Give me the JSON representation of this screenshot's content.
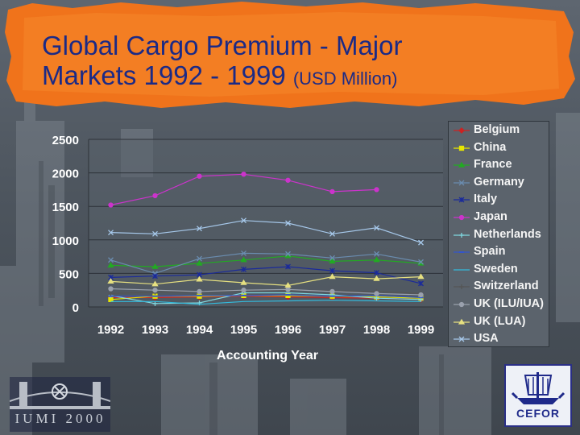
{
  "slide": {
    "title_line1": "Global Cargo Premium - Major",
    "title_line2": "Markets 1992 - 1999",
    "title_units": "(USD Million)",
    "logo_left_text": "IUMI 2000",
    "logo_right_text": "CEFOR"
  },
  "chart_data": {
    "type": "line",
    "title": "Global Cargo Premium - Major Markets 1992 - 1999 (USD Million)",
    "xlabel": "Accounting Year",
    "ylabel": "",
    "categories": [
      "1992",
      "1993",
      "1994",
      "1995",
      "1996",
      "1997",
      "1998",
      "1999"
    ],
    "ylim": [
      0,
      2500
    ],
    "yticks": [
      0,
      500,
      1000,
      1500,
      2000,
      2500
    ],
    "grid": "horizontal",
    "legend_position": "right",
    "series": [
      {
        "name": "Belgium",
        "color": "#cc2222",
        "marker": "diamond",
        "values": [
          140,
          140,
          150,
          160,
          150,
          140,
          130,
          110
        ]
      },
      {
        "name": "China",
        "color": "#e6e600",
        "marker": "square",
        "values": [
          110,
          160,
          160,
          170,
          170,
          160,
          150,
          130
        ]
      },
      {
        "name": "France",
        "color": "#22aa22",
        "marker": "triangle",
        "values": [
          620,
          600,
          650,
          700,
          760,
          680,
          700,
          650
        ]
      },
      {
        "name": "Germany",
        "color": "#6a8caf",
        "marker": "x",
        "values": [
          700,
          500,
          720,
          800,
          790,
          730,
          790,
          670
        ]
      },
      {
        "name": "Italy",
        "color": "#1a2a9a",
        "marker": "star",
        "values": [
          440,
          460,
          480,
          560,
          600,
          540,
          510,
          350
        ]
      },
      {
        "name": "Japan",
        "color": "#cc33cc",
        "marker": "circle",
        "values": [
          1520,
          1660,
          1950,
          1980,
          1890,
          1720,
          1750,
          null
        ]
      },
      {
        "name": "Netherlands",
        "color": "#7fd8e0",
        "marker": "plus",
        "values": [
          170,
          50,
          60,
          210,
          210,
          180,
          130,
          110
        ]
      },
      {
        "name": "Spain",
        "color": "#3355cc",
        "marker": "dash",
        "values": [
          160,
          160,
          170,
          170,
          180,
          160,
          170,
          140
        ]
      },
      {
        "name": "Sweden",
        "color": "#33bbdd",
        "marker": "none",
        "values": [
          80,
          80,
          40,
          80,
          90,
          100,
          90,
          80
        ]
      },
      {
        "name": "Switzerland",
        "color": "#555555",
        "marker": "plus",
        "values": [
          200,
          220,
          230,
          240,
          250,
          240,
          230,
          200
        ]
      },
      {
        "name": "UK (ILU/IUA)",
        "color": "#9aa1ad",
        "marker": "circle",
        "values": [
          270,
          250,
          230,
          250,
          260,
          230,
          200,
          180
        ]
      },
      {
        "name": "UK (LUA)",
        "color": "#e6e080",
        "marker": "triangle",
        "values": [
          380,
          340,
          410,
          360,
          320,
          450,
          420,
          450
        ]
      },
      {
        "name": "USA",
        "color": "#a6c8ea",
        "marker": "x",
        "values": [
          1110,
          1090,
          1170,
          1290,
          1250,
          1090,
          1180,
          960
        ]
      }
    ]
  }
}
